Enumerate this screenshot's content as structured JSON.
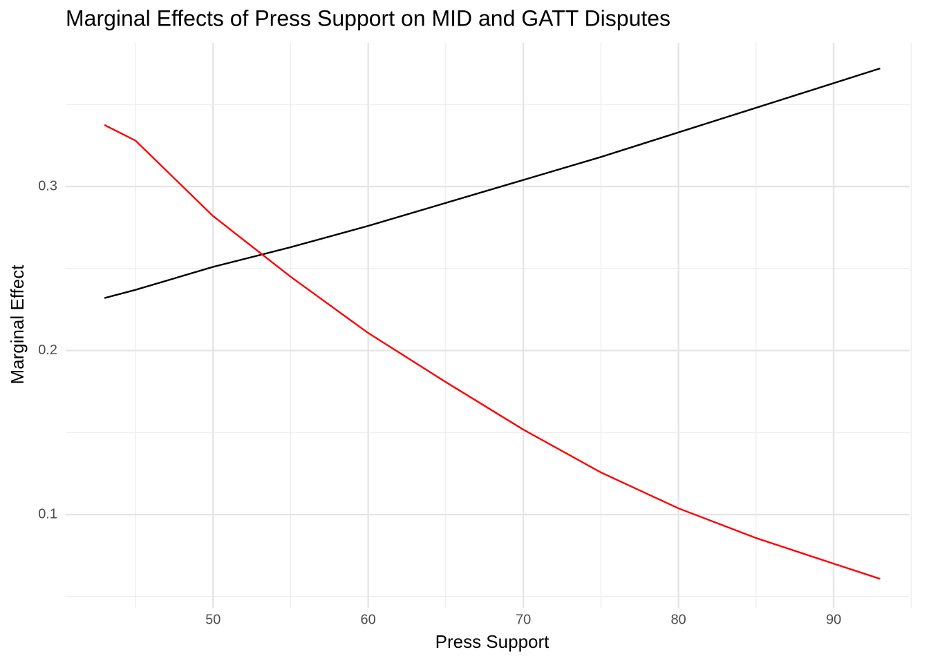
{
  "chart_data": {
    "type": "line",
    "title": "Marginal Effects of Press Support on MID and GATT Disputes",
    "x_label": "Press Support",
    "y_label": "Marginal Effect",
    "x": [
      43,
      45,
      50,
      55,
      60,
      65,
      70,
      75,
      80,
      85,
      90,
      93
    ],
    "series": [
      {
        "color": "#000000",
        "values": [
          0.232,
          0.237,
          0.251,
          0.263,
          0.276,
          0.29,
          0.304,
          0.318,
          0.333,
          0.348,
          0.363,
          0.372
        ]
      },
      {
        "color": "#ff0000",
        "values": [
          0.3375,
          0.328,
          0.282,
          0.245,
          0.2107,
          0.1808,
          0.1518,
          0.1257,
          0.1038,
          0.0857,
          0.0701,
          0.0608
        ]
      }
    ],
    "xlim": [
      40.5,
      94.9
    ],
    "ylim": [
      0.0432,
      0.3876
    ],
    "xticks": [
      50,
      60,
      70,
      80,
      90
    ],
    "yticks": [
      0.1,
      0.2,
      0.3
    ],
    "xminor": [
      45,
      55,
      65,
      75,
      85,
      95
    ],
    "yminor": [
      0.05,
      0.15,
      0.25,
      0.35
    ],
    "grid": true
  }
}
